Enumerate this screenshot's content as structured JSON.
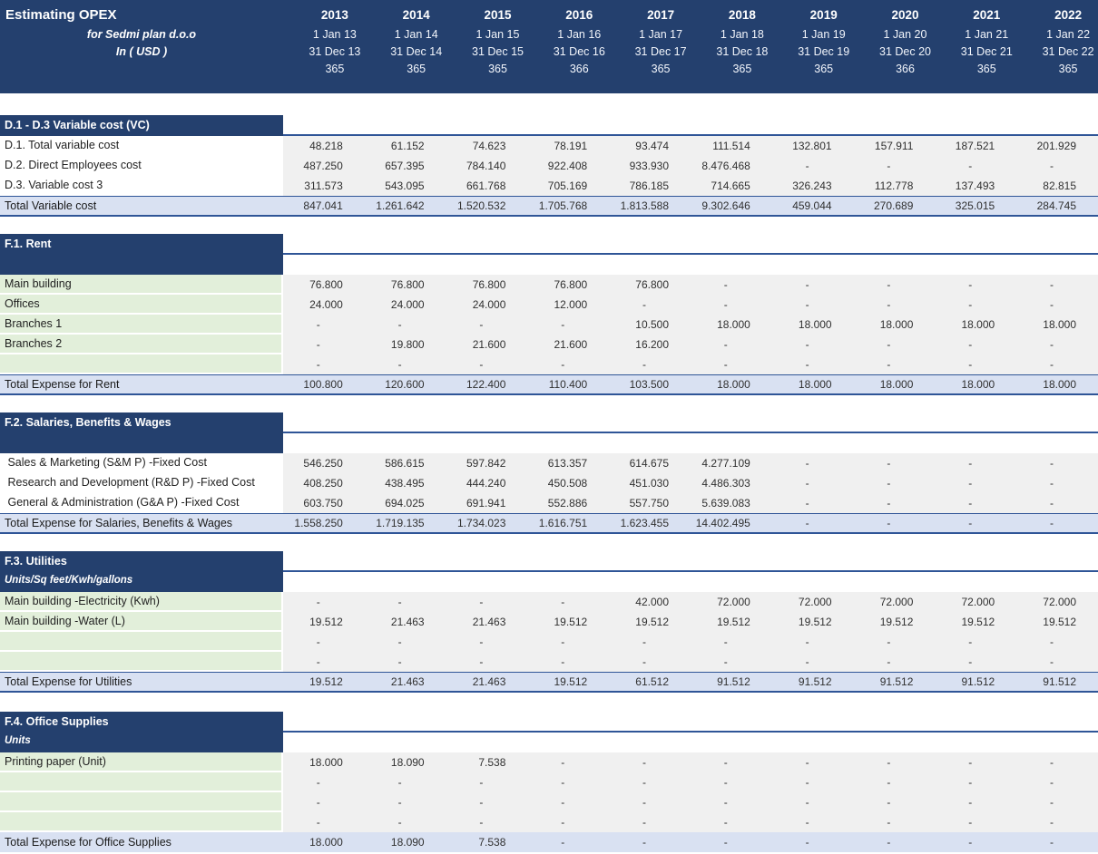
{
  "header": {
    "title": "Estimating OPEX",
    "subtitle1": "for Sedmi plan d.o.o",
    "subtitle2": "In ( USD )",
    "years": [
      {
        "year": "2013",
        "start": "1 Jan 13",
        "end": "31 Dec 13",
        "days": "365"
      },
      {
        "year": "2014",
        "start": "1 Jan 14",
        "end": "31 Dec 14",
        "days": "365"
      },
      {
        "year": "2015",
        "start": "1 Jan 15",
        "end": "31 Dec 15",
        "days": "365"
      },
      {
        "year": "2016",
        "start": "1 Jan 16",
        "end": "31 Dec 16",
        "days": "366"
      },
      {
        "year": "2017",
        "start": "1 Jan 17",
        "end": "31 Dec 17",
        "days": "365"
      },
      {
        "year": "2018",
        "start": "1 Jan 18",
        "end": "31 Dec 18",
        "days": "365"
      },
      {
        "year": "2019",
        "start": "1 Jan 19",
        "end": "31 Dec 19",
        "days": "365"
      },
      {
        "year": "2020",
        "start": "1 Jan 20",
        "end": "31 Dec 20",
        "days": "366"
      },
      {
        "year": "2021",
        "start": "1 Jan 21",
        "end": "31 Dec 21",
        "days": "365"
      },
      {
        "year": "2022",
        "start": "1 Jan 22",
        "end": "31 Dec 22",
        "days": "365"
      }
    ]
  },
  "sections": [
    {
      "id": "variable-cost",
      "title": "D.1 - D.3 Variable cost (VC)",
      "label_style": "plain",
      "rows": [
        {
          "label": "D.1. Total variable cost",
          "values": [
            "48.218",
            "61.152",
            "74.623",
            "78.191",
            "93.474",
            "111.514",
            "132.801",
            "157.911",
            "187.521",
            "201.929"
          ]
        },
        {
          "label": "D.2. Direct Employees cost",
          "values": [
            "487.250",
            "657.395",
            "784.140",
            "922.408",
            "933.930",
            "8.476.468",
            "-",
            "-",
            "-",
            "-"
          ]
        },
        {
          "label": "D.3. Variable cost 3",
          "values": [
            "311.573",
            "543.095",
            "661.768",
            "705.169",
            "786.185",
            "714.665",
            "326.243",
            "112.778",
            "137.493",
            "82.815"
          ]
        }
      ],
      "total": {
        "label": "Total Variable cost",
        "values": [
          "847.041",
          "1.261.642",
          "1.520.532",
          "1.705.768",
          "1.813.588",
          "9.302.646",
          "459.044",
          "270.689",
          "325.015",
          "284.745"
        ]
      }
    },
    {
      "id": "rent",
      "title": "F.1. Rent",
      "subtitle": "",
      "label_style": "green",
      "rows": [
        {
          "label": "Main building",
          "values": [
            "76.800",
            "76.800",
            "76.800",
            "76.800",
            "76.800",
            "-",
            "-",
            "-",
            "-",
            "-"
          ]
        },
        {
          "label": "Offices",
          "values": [
            "24.000",
            "24.000",
            "24.000",
            "12.000",
            "-",
            "-",
            "-",
            "-",
            "-",
            "-"
          ]
        },
        {
          "label": "Branches 1",
          "values": [
            "-",
            "-",
            "-",
            "-",
            "10.500",
            "18.000",
            "18.000",
            "18.000",
            "18.000",
            "18.000"
          ]
        },
        {
          "label": "Branches 2",
          "values": [
            "-",
            "19.800",
            "21.600",
            "21.600",
            "16.200",
            "-",
            "-",
            "-",
            "-",
            "-"
          ]
        },
        {
          "label": "",
          "values": [
            "-",
            "-",
            "-",
            "-",
            "-",
            "-",
            "-",
            "-",
            "-",
            "-"
          ]
        }
      ],
      "total": {
        "label": "Total Expense for Rent",
        "values": [
          "100.800",
          "120.600",
          "122.400",
          "110.400",
          "103.500",
          "18.000",
          "18.000",
          "18.000",
          "18.000",
          "18.000"
        ]
      }
    },
    {
      "id": "salaries",
      "title": "F.2. Salaries, Benefits & Wages",
      "subtitle": "",
      "label_style": "plain",
      "rows": [
        {
          "label": " Sales & Marketing (S&M P) -Fixed Cost",
          "values": [
            "546.250",
            "586.615",
            "597.842",
            "613.357",
            "614.675",
            "4.277.109",
            "-",
            "-",
            "-",
            "-"
          ]
        },
        {
          "label": " Research and Development (R&D P) -Fixed Cost",
          "values": [
            "408.250",
            "438.495",
            "444.240",
            "450.508",
            "451.030",
            "4.486.303",
            "-",
            "-",
            "-",
            "-"
          ]
        },
        {
          "label": " General & Administration (G&A P) -Fixed Cost",
          "values": [
            "603.750",
            "694.025",
            "691.941",
            "552.886",
            "557.750",
            "5.639.083",
            "-",
            "-",
            "-",
            "-"
          ]
        }
      ],
      "total": {
        "label": "Total Expense for Salaries, Benefits & Wages",
        "values": [
          "1.558.250",
          "1.719.135",
          "1.734.023",
          "1.616.751",
          "1.623.455",
          "14.402.495",
          "-",
          "-",
          "-",
          "-"
        ]
      }
    },
    {
      "id": "utilities",
      "title": "F.3. Utilities",
      "subtitle": "Units/Sq feet/Kwh/gallons",
      "label_style": "green",
      "rows": [
        {
          "label": "Main building -Electricity (Kwh)",
          "values": [
            "-",
            "-",
            "-",
            "-",
            "42.000",
            "72.000",
            "72.000",
            "72.000",
            "72.000",
            "72.000"
          ]
        },
        {
          "label": "Main building -Water (L)",
          "values": [
            "19.512",
            "21.463",
            "21.463",
            "19.512",
            "19.512",
            "19.512",
            "19.512",
            "19.512",
            "19.512",
            "19.512"
          ]
        },
        {
          "label": "",
          "values": [
            "-",
            "-",
            "-",
            "-",
            "-",
            "-",
            "-",
            "-",
            "-",
            "-"
          ]
        },
        {
          "label": "",
          "values": [
            "-",
            "-",
            "-",
            "-",
            "-",
            "-",
            "-",
            "-",
            "-",
            "-"
          ]
        }
      ],
      "total": {
        "label": "Total Expense for Utilities",
        "values": [
          "19.512",
          "21.463",
          "21.463",
          "19.512",
          "61.512",
          "91.512",
          "91.512",
          "91.512",
          "91.512",
          "91.512"
        ]
      }
    },
    {
      "id": "office-supplies",
      "title": "F.4. Office Supplies",
      "subtitle": "Units",
      "label_style": "green",
      "rows": [
        {
          "label": "Printing paper (Unit)",
          "values": [
            "18.000",
            "18.090",
            "7.538",
            "-",
            "-",
            "-",
            "-",
            "-",
            "-",
            "-"
          ]
        },
        {
          "label": "",
          "values": [
            "-",
            "-",
            "-",
            "-",
            "-",
            "-",
            "-",
            "-",
            "-",
            "-"
          ]
        },
        {
          "label": "",
          "values": [
            "-",
            "-",
            "-",
            "-",
            "-",
            "-",
            "-",
            "-",
            "-",
            "-"
          ]
        },
        {
          "label": "",
          "values": [
            "-",
            "-",
            "-",
            "-",
            "-",
            "-",
            "-",
            "-",
            "-",
            "-"
          ]
        }
      ],
      "total": {
        "label": "Total Expense for Office Supplies",
        "values": [
          "18.000",
          "18.090",
          "7.538",
          "-",
          "-",
          "-",
          "-",
          "-",
          "-",
          "-"
        ]
      }
    }
  ],
  "colors": {
    "header_navy": "#24406E",
    "rule_blue": "#2F5597",
    "label_green": "#E2EFDA",
    "values_gray": "#F0F0F0",
    "total_lavender": "#D9E1F2"
  }
}
